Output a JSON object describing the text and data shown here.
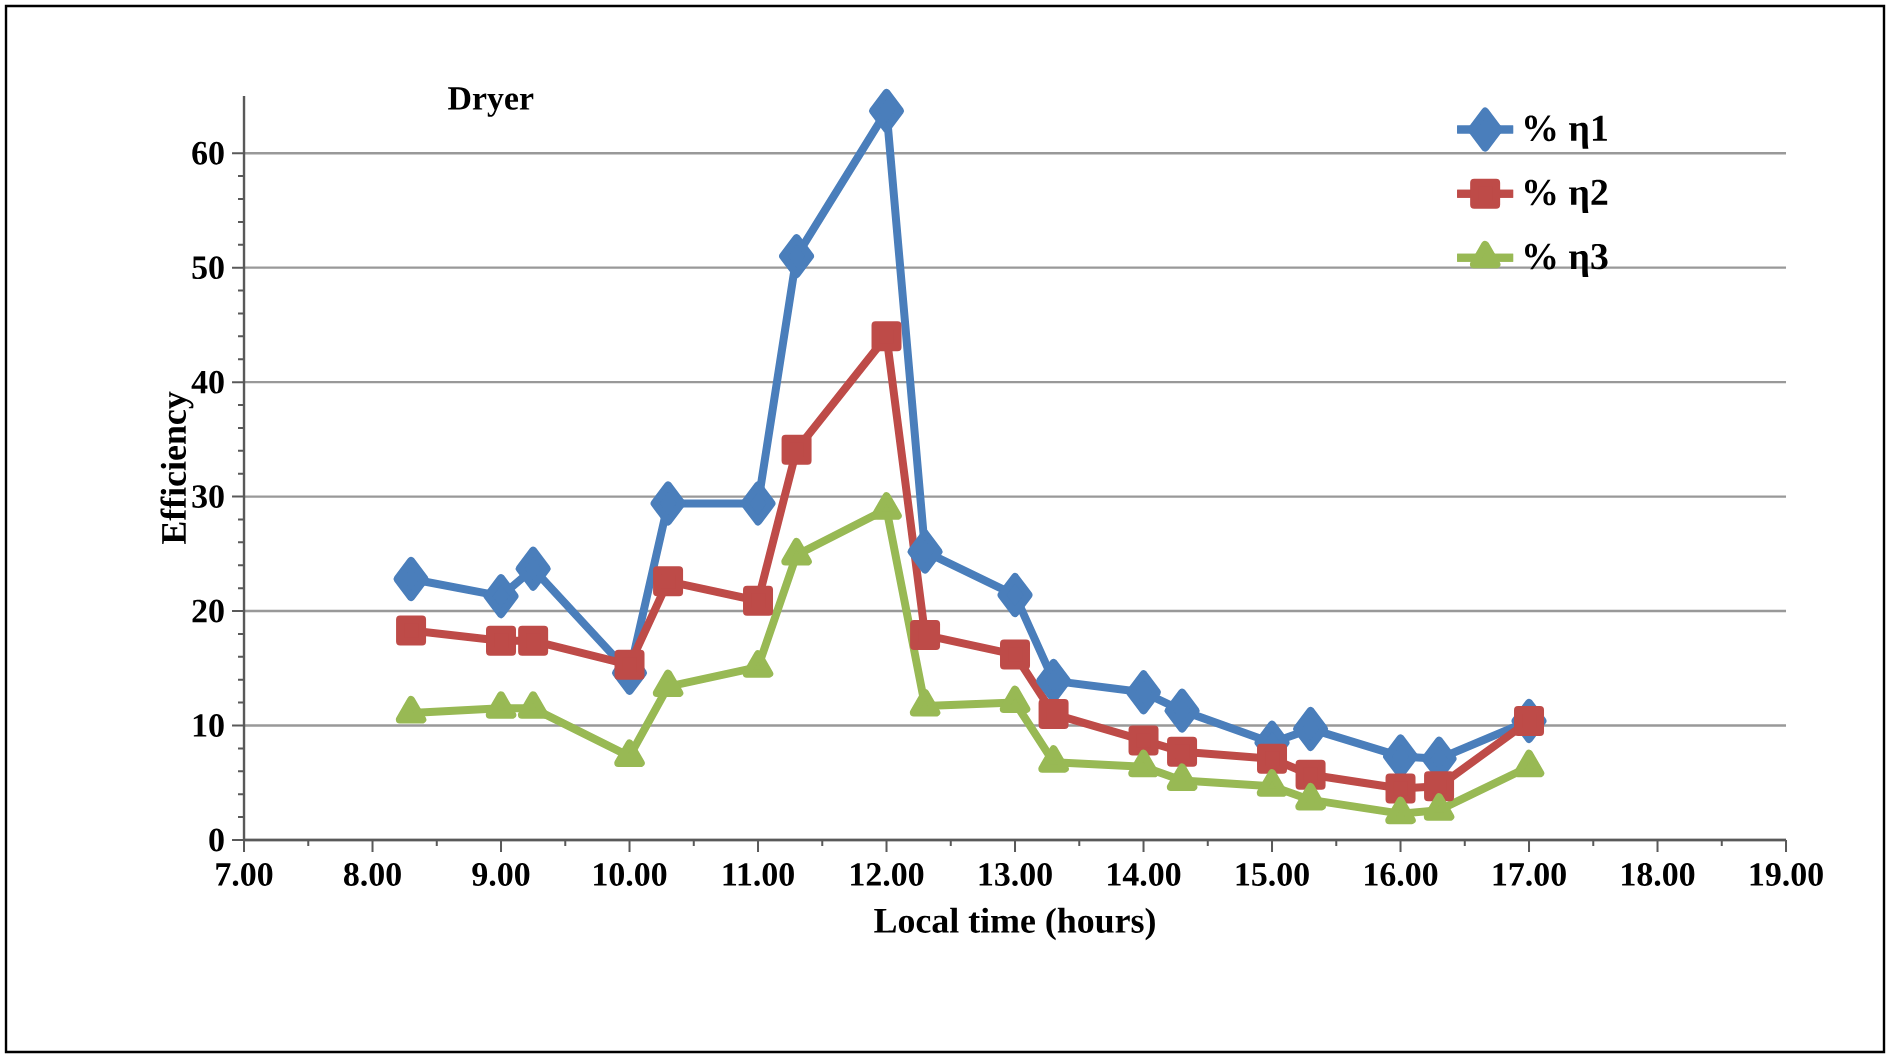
{
  "chart_data": {
    "type": "line",
    "title": "Dryer",
    "xlabel": "Local time (hours)",
    "ylabel": "Efficiency",
    "xlim": [
      7,
      19
    ],
    "ylim": [
      0,
      65
    ],
    "xticks": [
      {
        "value": 7,
        "label": "7.00"
      },
      {
        "value": 8,
        "label": "8.00"
      },
      {
        "value": 9,
        "label": "9.00"
      },
      {
        "value": 10,
        "label": "10.00"
      },
      {
        "value": 11,
        "label": "11.00"
      },
      {
        "value": 12,
        "label": "12.00"
      },
      {
        "value": 13,
        "label": "13.00"
      },
      {
        "value": 14,
        "label": "14.00"
      },
      {
        "value": 15,
        "label": "15.00"
      },
      {
        "value": 16,
        "label": "16.00"
      },
      {
        "value": 17,
        "label": "17.00"
      },
      {
        "value": 18,
        "label": "18.00"
      },
      {
        "value": 19,
        "label": "19.00"
      }
    ],
    "yticks": [
      0,
      10,
      20,
      30,
      40,
      50,
      60
    ],
    "x": [
      8.3,
      9.0,
      9.25,
      10.0,
      10.3,
      11.0,
      11.3,
      12.0,
      12.3,
      13.0,
      13.3,
      14.0,
      14.3,
      15.0,
      15.3,
      16.0,
      16.3,
      17.0
    ],
    "grid": "y",
    "legend": "top right",
    "line_style": "solid",
    "series": [
      {
        "name": "% η1",
        "color": "#4a7ebb",
        "marker": "diamond",
        "values": [
          22.8,
          21.3,
          23.7,
          14.6,
          29.4,
          29.4,
          51,
          63.7,
          25.2,
          21.4,
          13.9,
          12.9,
          11.3,
          8.5,
          9.7,
          7.3,
          7.1,
          10.4
        ]
      },
      {
        "name": "% η2",
        "color": "#be4b48",
        "marker": "square",
        "values": [
          18.3,
          17.4,
          17.4,
          15.3,
          22.6,
          20.9,
          34.1,
          44,
          17.9,
          16.2,
          11,
          8.7,
          7.7,
          7.1,
          5.7,
          4.5,
          4.7,
          10.4
        ]
      },
      {
        "name": "% η3",
        "color": "#98b954",
        "marker": "triangle",
        "values": [
          11.1,
          11.5,
          11.5,
          7.3,
          13.4,
          15.1,
          24.9,
          28.9,
          11.7,
          12,
          6.8,
          6.4,
          5.2,
          4.7,
          3.5,
          2.3,
          2.6,
          6.4
        ]
      }
    ]
  }
}
